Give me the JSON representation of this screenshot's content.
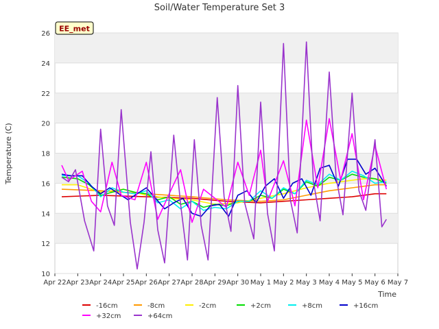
{
  "chart_data": {
    "type": "line",
    "title": "Soil/Water Temperature Set 3",
    "xlabel": "Time",
    "ylabel": "Temperature (C)",
    "ylim": [
      10,
      26
    ],
    "yticks": [
      10,
      12,
      14,
      16,
      18,
      20,
      22,
      24,
      26
    ],
    "x_ticks": [
      "Apr 22",
      "Apr 23",
      "Apr 24",
      "Apr 25",
      "Apr 26",
      "Apr 27",
      "Apr 28",
      "Apr 29",
      "Apr 30",
      "May 1",
      "May 2",
      "May 3",
      "May 4",
      "May 5",
      "May 6",
      "May 7"
    ],
    "x_range_days": [
      0,
      15
    ],
    "grid": true,
    "site_label": "EE_met",
    "legend_position": "bottom",
    "series": [
      {
        "name": "-16cm",
        "color": "#dd0000",
        "x": [
          0.3,
          2,
          4,
          6,
          7.5,
          9,
          10,
          11,
          12,
          13,
          13.5,
          14,
          14.5
        ],
        "y": [
          15.1,
          15.2,
          15.1,
          15.0,
          14.8,
          14.7,
          14.8,
          14.9,
          15.0,
          15.1,
          15.2,
          15.3,
          15.3
        ]
      },
      {
        "name": "-8cm",
        "color": "#ff9900",
        "x": [
          0.3,
          2,
          4,
          6,
          7.5,
          9,
          10,
          11,
          12,
          13,
          13.5,
          14,
          14.5
        ],
        "y": [
          15.6,
          15.5,
          15.3,
          15.1,
          14.9,
          14.8,
          14.9,
          15.2,
          15.5,
          15.7,
          15.8,
          15.9,
          15.9
        ]
      },
      {
        "name": "-2cm",
        "color": "#ffee00",
        "x": [
          0.3,
          1,
          2,
          3,
          4,
          5,
          6,
          7,
          8,
          9,
          10,
          11,
          12,
          13,
          13.5,
          14,
          14.5
        ],
        "y": [
          15.9,
          15.9,
          15.4,
          15.6,
          15.2,
          15.0,
          14.9,
          14.6,
          14.7,
          15.0,
          15.3,
          15.7,
          16.0,
          16.2,
          16.3,
          16.3,
          16.2
        ]
      },
      {
        "name": "+2cm",
        "color": "#00dd00",
        "x": [
          0.3,
          1,
          1.5,
          2,
          3,
          3.5,
          4,
          4.5,
          5,
          5.5,
          6,
          6.5,
          7,
          7.5,
          8,
          8.5,
          9,
          9.5,
          10,
          10.5,
          11,
          11.5,
          12,
          12.5,
          13,
          13.5,
          14,
          14.5
        ],
        "y": [
          16.4,
          16.3,
          15.9,
          15.2,
          15.6,
          15.4,
          15.3,
          14.9,
          15.1,
          14.6,
          14.8,
          14.4,
          14.6,
          14.5,
          14.8,
          14.8,
          15.2,
          15.0,
          15.6,
          15.3,
          16.1,
          15.8,
          16.4,
          16.2,
          16.6,
          16.4,
          16.3,
          16.0
        ]
      },
      {
        "name": "+8cm",
        "color": "#00eeee",
        "x": [
          0.3,
          1,
          1.5,
          2,
          2.5,
          3,
          3.5,
          4,
          4.5,
          5,
          5.5,
          6,
          6.5,
          7,
          7.5,
          8,
          8.5,
          9,
          9.5,
          10,
          10.5,
          11,
          11.5,
          12,
          12.5,
          13,
          13.5,
          14,
          14.5
        ],
        "y": [
          16.5,
          16.5,
          16.0,
          15.1,
          15.7,
          15.4,
          15.3,
          15.5,
          14.7,
          14.9,
          14.3,
          14.8,
          14.2,
          14.4,
          14.3,
          14.8,
          14.8,
          15.5,
          15.0,
          15.7,
          15.3,
          16.2,
          15.9,
          16.6,
          16.2,
          16.8,
          16.5,
          16.0,
          16.1
        ]
      },
      {
        "name": "+16cm",
        "color": "#0000cc",
        "x": [
          0.3,
          0.7,
          1.2,
          1.6,
          2,
          2.4,
          2.8,
          3.2,
          3.6,
          4,
          4.4,
          4.8,
          5.2,
          5.6,
          6,
          6.4,
          6.8,
          7.2,
          7.6,
          8,
          8.4,
          8.8,
          9.2,
          9.6,
          10,
          10.4,
          10.8,
          11.2,
          11.6,
          12,
          12.4,
          12.8,
          13.2,
          13.6,
          14,
          14.5
        ],
        "y": [
          16.6,
          16.5,
          16.5,
          15.8,
          15.3,
          15.7,
          15.3,
          14.9,
          15.3,
          15.7,
          15.0,
          14.3,
          14.7,
          15.0,
          14.0,
          13.8,
          14.5,
          14.6,
          13.8,
          15.2,
          15.5,
          14.7,
          15.8,
          16.3,
          15.0,
          16.0,
          16.3,
          15.2,
          17.0,
          17.2,
          15.8,
          17.6,
          17.6,
          16.6,
          17.0,
          15.8
        ]
      },
      {
        "name": "+32cm",
        "color": "#ff00ff",
        "x": [
          0.3,
          0.6,
          1.2,
          1.6,
          2,
          2.5,
          2.9,
          3.5,
          4,
          4.5,
          5,
          5.5,
          6,
          6.5,
          7,
          7.5,
          8,
          8.5,
          9,
          9.3,
          10,
          10.5,
          11,
          11.5,
          12,
          12.5,
          13,
          13.5,
          14,
          14.5
        ],
        "y": [
          17.2,
          16.2,
          16.8,
          14.8,
          14.1,
          17.4,
          15.2,
          14.9,
          17.4,
          13.6,
          15.3,
          16.9,
          13.4,
          15.6,
          15.0,
          14.4,
          17.4,
          15.2,
          18.2,
          14.8,
          17.5,
          14.5,
          20.2,
          15.7,
          20.3,
          16.2,
          19.3,
          14.9,
          18.5,
          15.6
        ]
      },
      {
        "name": "+64cm",
        "color": "#9933cc",
        "x": [
          0.3,
          0.6,
          0.9,
          1.3,
          1.7,
          2,
          2.3,
          2.6,
          2.9,
          3.3,
          3.6,
          3.9,
          4.2,
          4.5,
          4.8,
          5.2,
          5.5,
          5.8,
          6.1,
          6.4,
          6.7,
          7.1,
          7.4,
          7.7,
          8,
          8.3,
          8.7,
          9,
          9.3,
          9.6,
          10,
          10.3,
          10.6,
          11,
          11.3,
          11.6,
          12,
          12.3,
          12.6,
          13,
          13.3,
          13.6,
          14,
          14.3,
          14.5
        ],
        "y": [
          16.4,
          16.1,
          16.9,
          13.5,
          11.5,
          19.6,
          14.5,
          13.2,
          20.9,
          13.4,
          10.3,
          13.4,
          18.1,
          12.9,
          10.7,
          19.2,
          14.6,
          10.9,
          18.9,
          13.2,
          10.9,
          21.7,
          15.1,
          12.8,
          22.5,
          14.7,
          12.3,
          21.4,
          14.0,
          11.5,
          25.3,
          14.9,
          12.7,
          25.4,
          16.2,
          13.5,
          23.4,
          16.4,
          13.9,
          22.0,
          15.5,
          14.2,
          18.9,
          13.1,
          13.6
        ]
      }
    ]
  }
}
